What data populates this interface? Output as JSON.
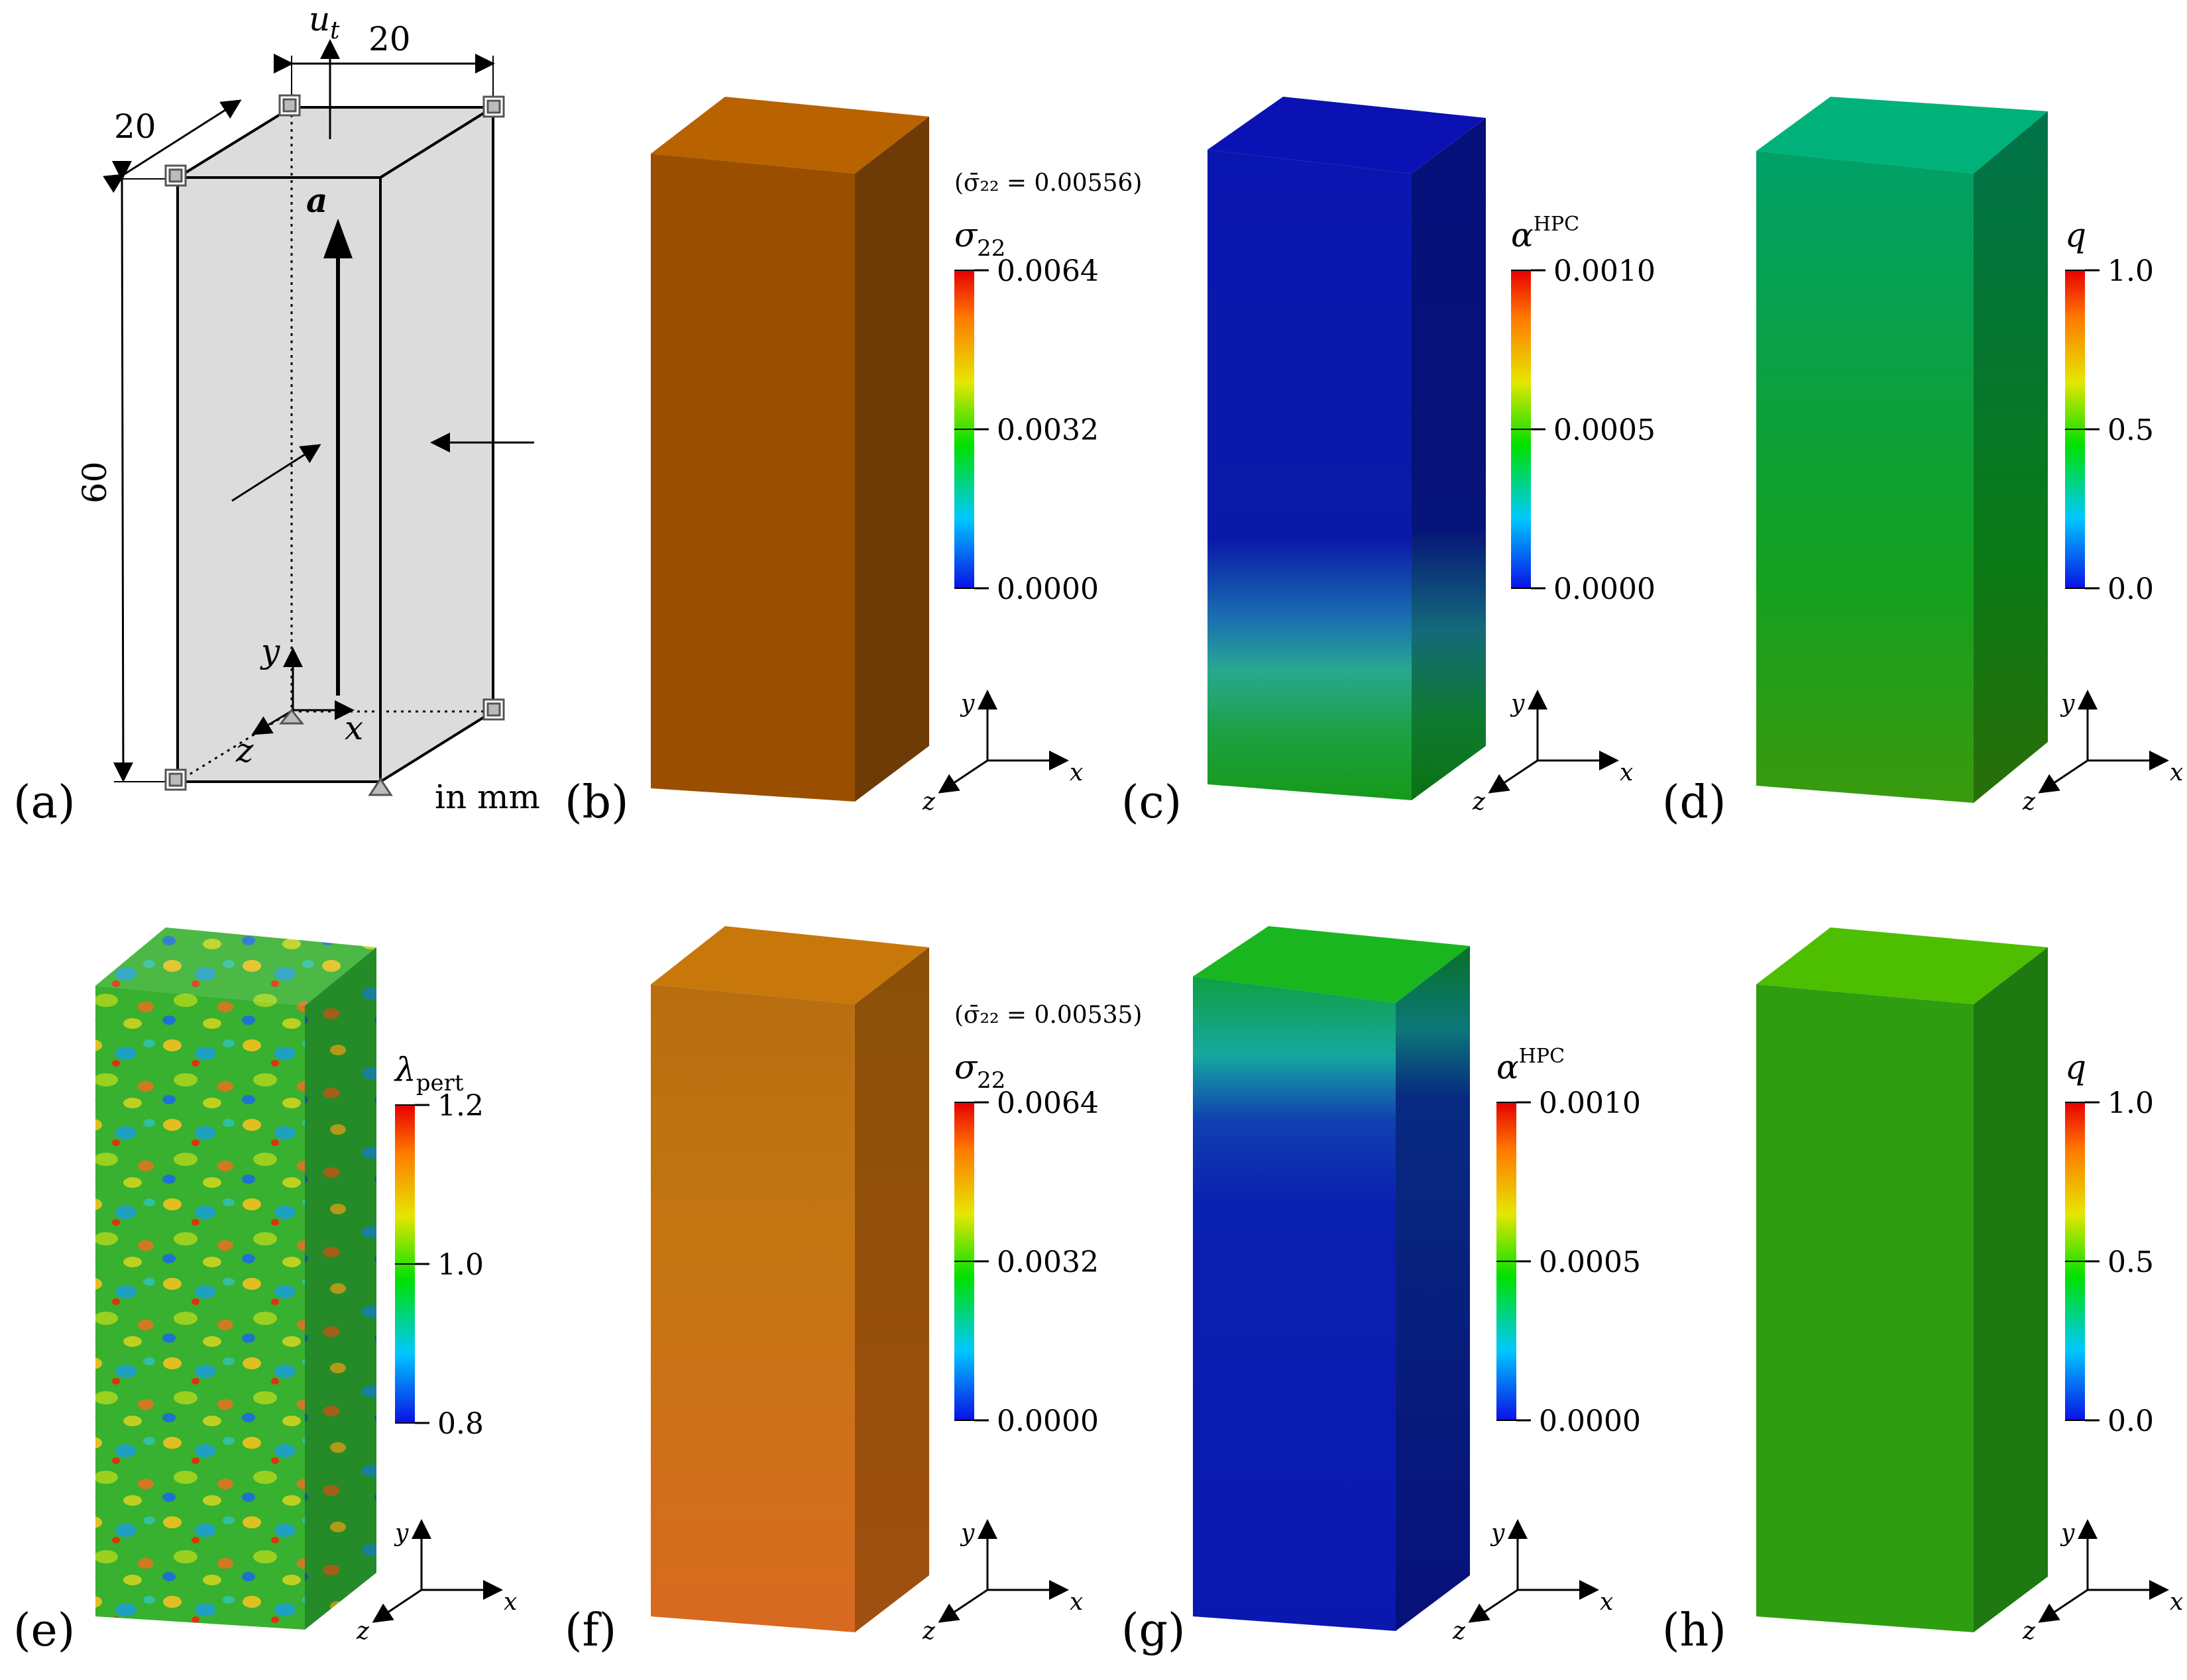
{
  "panel_labels": [
    "(a)",
    "(b)",
    "(c)",
    "(d)",
    "(e)",
    "(f)",
    "(g)",
    "(h)"
  ],
  "schematic": {
    "load_label": "u",
    "load_sub": "t",
    "dim_width": "20",
    "dim_depth": "20",
    "dim_height": "60",
    "fiber_label": "a",
    "axis_x": "x",
    "axis_y": "y",
    "axis_z": "z",
    "units": "in mm"
  },
  "triad": {
    "x": "x",
    "y": "y",
    "z": "z"
  },
  "colorbars": [
    {
      "panel": "b",
      "var": "σ",
      "sub": "22",
      "sup": "",
      "max": "0.0064",
      "mid": "0.0032",
      "min": "0.0000",
      "note": "(σ̄₂₂ = 0.00556)"
    },
    {
      "panel": "c",
      "var": "α",
      "sub": "",
      "sup": "HPC",
      "max": "0.0010",
      "mid": "0.0005",
      "min": "0.0000",
      "note": ""
    },
    {
      "panel": "d",
      "var": "q",
      "sub": "",
      "sup": "",
      "max": "1.0",
      "mid": "0.5",
      "min": "0.0",
      "note": ""
    },
    {
      "panel": "e",
      "var": "λ",
      "sub": "pert",
      "sup": "",
      "max": "1.2",
      "mid": "1.0",
      "min": "0.8",
      "note": ""
    },
    {
      "panel": "f",
      "var": "σ",
      "sub": "22",
      "sup": "",
      "max": "0.0064",
      "mid": "0.0032",
      "min": "0.0000",
      "note": "(σ̄₂₂ = 0.00535)"
    },
    {
      "panel": "g",
      "var": "α",
      "sub": "",
      "sup": "HPC",
      "max": "0.0010",
      "mid": "0.0005",
      "min": "0.0000",
      "note": ""
    },
    {
      "panel": "h",
      "var": "q",
      "sub": "",
      "sup": "",
      "max": "1.0",
      "mid": "0.5",
      "min": "0.0",
      "note": ""
    }
  ],
  "colors": {
    "b_front": "#9a4f00",
    "b_top": "#b96200",
    "b_side": "#6e3a06",
    "c_blue": "#0a17ad",
    "c_green": "#1a9c1a",
    "d_top": "#00b27a",
    "d_front": "#109c55",
    "d_side": "#08703c",
    "f_front": "#c46e10",
    "g_top": "#19b61f",
    "h_top": "#4ebf00",
    "h_front": "#2e9e10"
  }
}
